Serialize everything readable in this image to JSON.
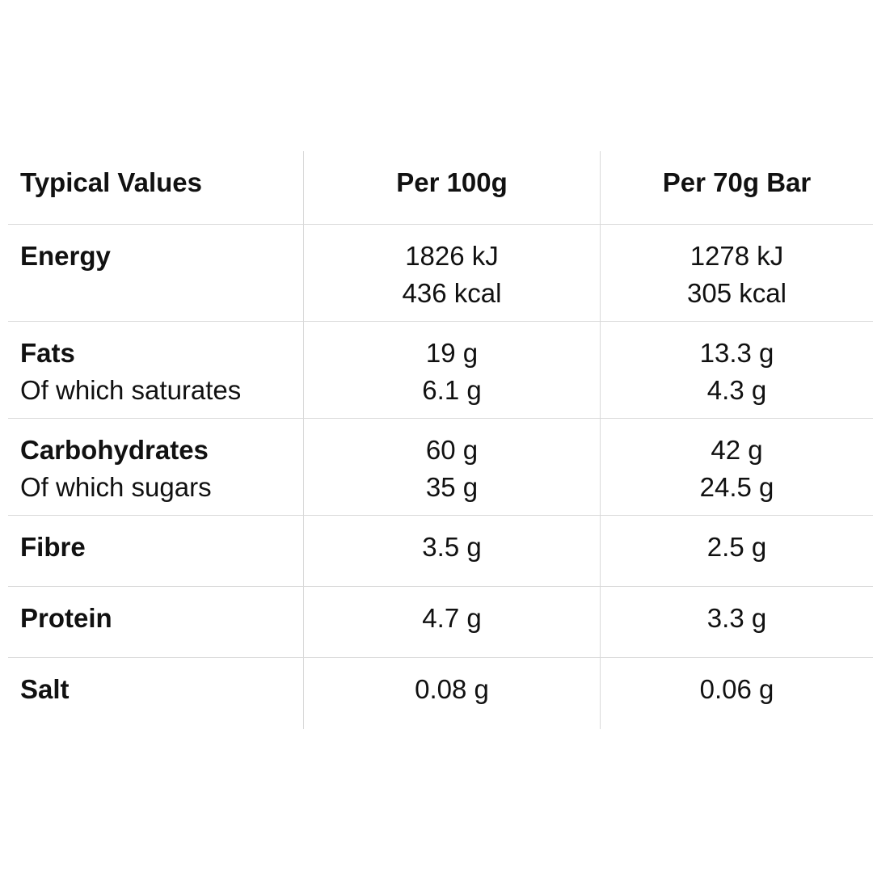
{
  "table": {
    "headers": [
      "Typical Values",
      "Per 100g",
      "Per 70g Bar"
    ],
    "rows": [
      {
        "label": "Energy",
        "sublabel": "",
        "per100": [
          "1826 kJ",
          "436 kcal"
        ],
        "perBar": [
          "1278 kJ",
          "305 kcal"
        ]
      },
      {
        "label": "Fats",
        "sublabel": "Of which saturates",
        "per100": [
          "19 g",
          "6.1 g"
        ],
        "perBar": [
          "13.3 g",
          "4.3 g"
        ]
      },
      {
        "label": "Carbohydrates",
        "sublabel": "Of which sugars",
        "per100": [
          "60 g",
          "35 g"
        ],
        "perBar": [
          "42 g",
          "24.5 g"
        ]
      },
      {
        "label": "Fibre",
        "sublabel": "",
        "per100": [
          "3.5 g"
        ],
        "perBar": [
          "2.5 g"
        ]
      },
      {
        "label": "Protein",
        "sublabel": "",
        "per100": [
          "4.7 g"
        ],
        "perBar": [
          "3.3 g"
        ]
      },
      {
        "label": "Salt",
        "sublabel": "",
        "per100": [
          "0.08 g"
        ],
        "perBar": [
          "0.06 g"
        ]
      }
    ]
  }
}
